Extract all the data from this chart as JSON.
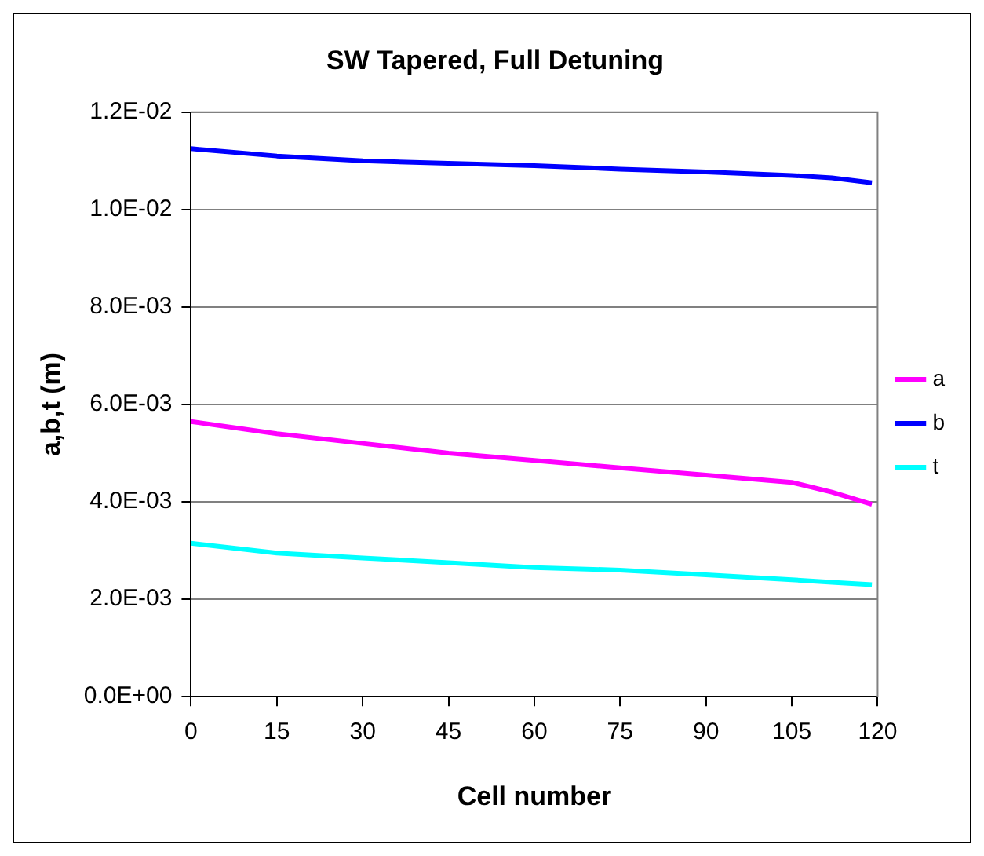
{
  "chart_data": {
    "type": "line",
    "title": "SW Tapered, Full Detuning",
    "xlabel": "Cell number",
    "ylabel": "a,b,t (m)",
    "x": [
      0,
      15,
      30,
      45,
      60,
      75,
      90,
      105,
      112,
      119
    ],
    "series": [
      {
        "name": "a",
        "color": "#ff00ff",
        "values": [
          0.00565,
          0.0054,
          0.0052,
          0.005,
          0.00485,
          0.0047,
          0.00455,
          0.0044,
          0.0042,
          0.00395
        ]
      },
      {
        "name": "b",
        "color": "#0000ff",
        "values": [
          0.01125,
          0.0111,
          0.011,
          0.01095,
          0.0109,
          0.01083,
          0.01077,
          0.0107,
          0.01065,
          0.01055
        ]
      },
      {
        "name": "t",
        "color": "#00ffff",
        "values": [
          0.00315,
          0.00295,
          0.00285,
          0.00275,
          0.00265,
          0.0026,
          0.0025,
          0.0024,
          0.00235,
          0.0023
        ]
      }
    ],
    "xlim": [
      0,
      120
    ],
    "xticks": [
      0,
      15,
      30,
      45,
      60,
      75,
      90,
      105,
      120
    ],
    "ylim": [
      0,
      0.012
    ],
    "yticks": [
      {
        "value": 0,
        "label": "0.0E+00"
      },
      {
        "value": 0.002,
        "label": "2.0E-03"
      },
      {
        "value": 0.004,
        "label": "4.0E-03"
      },
      {
        "value": 0.006,
        "label": "6.0E-03"
      },
      {
        "value": 0.008,
        "label": "8.0E-03"
      },
      {
        "value": 0.01,
        "label": "1.0E-02"
      },
      {
        "value": 0.012,
        "label": "1.2E-02"
      }
    ],
    "grid": "y",
    "legend": "right",
    "marker": "none",
    "line_style": "solid"
  }
}
